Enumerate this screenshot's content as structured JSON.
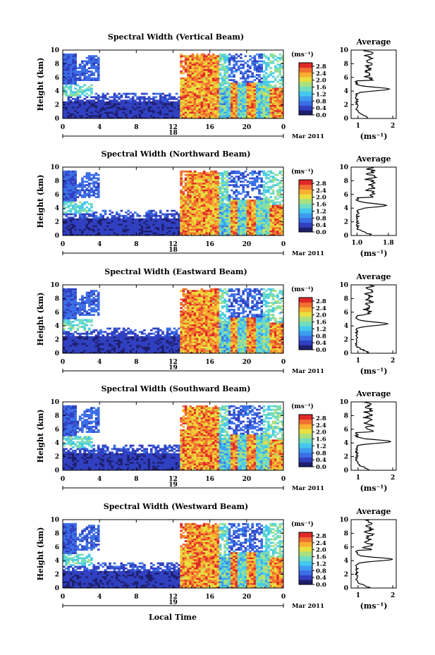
{
  "chart_data": [
    {
      "type": "heatmap",
      "title": "Spectral Width (Vertical Beam)",
      "ylabel": "Height (km)",
      "xlim": [
        0,
        24
      ],
      "ylim": [
        0,
        10
      ],
      "x_ticks": [
        "0",
        "4",
        "8",
        "12",
        "16",
        "20",
        "0"
      ],
      "y_ticks": [
        "0",
        "2",
        "4",
        "6",
        "8",
        "10"
      ],
      "date_day": "18",
      "date_month": "Mar 2011",
      "colorbar": {
        "unit": "(ms⁻¹)",
        "ticks": [
          "0.0",
          "0.4",
          "0.8",
          "1.2",
          "1.6",
          "2.0",
          "2.4",
          "2.8"
        ],
        "range": [
          0,
          3.0
        ]
      },
      "average": {
        "title": "Average",
        "xlabel": "(ms⁻¹)",
        "x_ticks": [
          "1",
          "2"
        ],
        "x_tick_vals": [
          1,
          2
        ],
        "xlim": [
          0.8,
          2.1
        ],
        "y_ticks": [
          "0",
          "2",
          "4",
          "6",
          "8",
          "10"
        ],
        "peak_height": 4.3,
        "peak_value": 1.9
      }
    },
    {
      "type": "heatmap",
      "title": "Spectral Width (Northward Beam)",
      "ylabel": "Height (km)",
      "xlim": [
        0,
        24
      ],
      "ylim": [
        0,
        10
      ],
      "x_ticks": [
        "0",
        "4",
        "8",
        "12",
        "16",
        "20",
        "0"
      ],
      "y_ticks": [
        "0",
        "2",
        "4",
        "6",
        "8",
        "10"
      ],
      "date_day": "18",
      "date_month": "Mar 2011",
      "colorbar": {
        "unit": "(ms⁻¹)",
        "ticks": [
          "0.0",
          "0.4",
          "0.8",
          "1.2",
          "1.6",
          "2.0",
          "2.4",
          "2.8"
        ],
        "range": [
          0,
          3.0
        ]
      },
      "average": {
        "title": "Average",
        "xlabel": "(ms⁻¹)",
        "x_ticks": [
          "1.0",
          "1.8"
        ],
        "x_tick_vals": [
          1.0,
          1.8
        ],
        "xlim": [
          0.85,
          2.0
        ],
        "y_ticks": [
          "0",
          "2",
          "4",
          "6",
          "8",
          "10"
        ],
        "peak_height": 4.4,
        "peak_value": 1.75
      }
    },
    {
      "type": "heatmap",
      "title": "Spectral Width (Eastward Beam)",
      "ylabel": "Height (km)",
      "xlim": [
        0,
        24
      ],
      "ylim": [
        0,
        10
      ],
      "x_ticks": [
        "0",
        "4",
        "8",
        "12",
        "16",
        "20",
        "0"
      ],
      "y_ticks": [
        "0",
        "2",
        "4",
        "6",
        "8",
        "10"
      ],
      "date_day": "19",
      "date_month": "Mar 2011",
      "colorbar": {
        "unit": "(ms⁻¹)",
        "ticks": [
          "0.0",
          "0.4",
          "0.8",
          "1.2",
          "1.6",
          "2.0",
          "2.4",
          "2.8"
        ],
        "range": [
          0,
          3.0
        ]
      },
      "average": {
        "title": "Average",
        "xlabel": "(ms⁻¹)",
        "x_ticks": [
          "1",
          "2"
        ],
        "x_tick_vals": [
          1,
          2
        ],
        "xlim": [
          0.8,
          2.1
        ],
        "y_ticks": [
          "0",
          "2",
          "4",
          "6",
          "8",
          "10"
        ],
        "peak_height": 4.3,
        "peak_value": 1.85
      }
    },
    {
      "type": "heatmap",
      "title": "Spectral Width (Southward Beam)",
      "ylabel": "Height (km)",
      "xlim": [
        0,
        24
      ],
      "ylim": [
        0,
        10
      ],
      "x_ticks": [
        "0",
        "4",
        "8",
        "12",
        "16",
        "20",
        "0"
      ],
      "y_ticks": [
        "0",
        "2",
        "4",
        "6",
        "8",
        "10"
      ],
      "date_day": "19",
      "date_month": "Mar 2011",
      "colorbar": {
        "unit": "(ms⁻¹)",
        "ticks": [
          "0.0",
          "0.4",
          "0.8",
          "1.2",
          "1.6",
          "2.0",
          "2.4",
          "2.8"
        ],
        "range": [
          0,
          3.0
        ]
      },
      "average": {
        "title": "Average",
        "xlabel": "(ms⁻¹)",
        "x_ticks": [
          "1",
          "2"
        ],
        "x_tick_vals": [
          1,
          2
        ],
        "xlim": [
          0.8,
          2.1
        ],
        "y_ticks": [
          "0",
          "2",
          "4",
          "6",
          "8",
          "10"
        ],
        "peak_height": 4.2,
        "peak_value": 1.95
      }
    },
    {
      "type": "heatmap",
      "title": "Spectral Width (Westward Beam)",
      "ylabel": "Height (km)",
      "xlim": [
        0,
        24
      ],
      "ylim": [
        0,
        10
      ],
      "x_ticks": [
        "0",
        "4",
        "8",
        "12",
        "16",
        "20",
        "0"
      ],
      "y_ticks": [
        "0",
        "2",
        "4",
        "6",
        "8",
        "10"
      ],
      "date_day": "19",
      "date_month": "Mar 2011",
      "colorbar": {
        "unit": "(ms⁻¹)",
        "ticks": [
          "0.0",
          "0.4",
          "0.8",
          "1.2",
          "1.6",
          "2.0",
          "2.4",
          "2.8"
        ],
        "range": [
          0,
          3.0
        ]
      },
      "average": {
        "title": "Average",
        "xlabel": "(ms⁻¹)",
        "x_ticks": [
          "1",
          "2"
        ],
        "x_tick_vals": [
          1,
          2
        ],
        "xlim": [
          0.8,
          2.1
        ],
        "y_ticks": [
          "0",
          "2",
          "4",
          "6",
          "8",
          "10"
        ],
        "peak_height": 4.2,
        "peak_value": 2.0
      }
    }
  ],
  "xlabel": "Local Time",
  "colors": {
    "scale": [
      "#1e1e6e",
      "#3040c0",
      "#3c6ee6",
      "#3c9cf0",
      "#44c8ee",
      "#70dcc0",
      "#a8e080",
      "#e8e040",
      "#f8b030",
      "#f07030",
      "#e02828"
    ]
  }
}
